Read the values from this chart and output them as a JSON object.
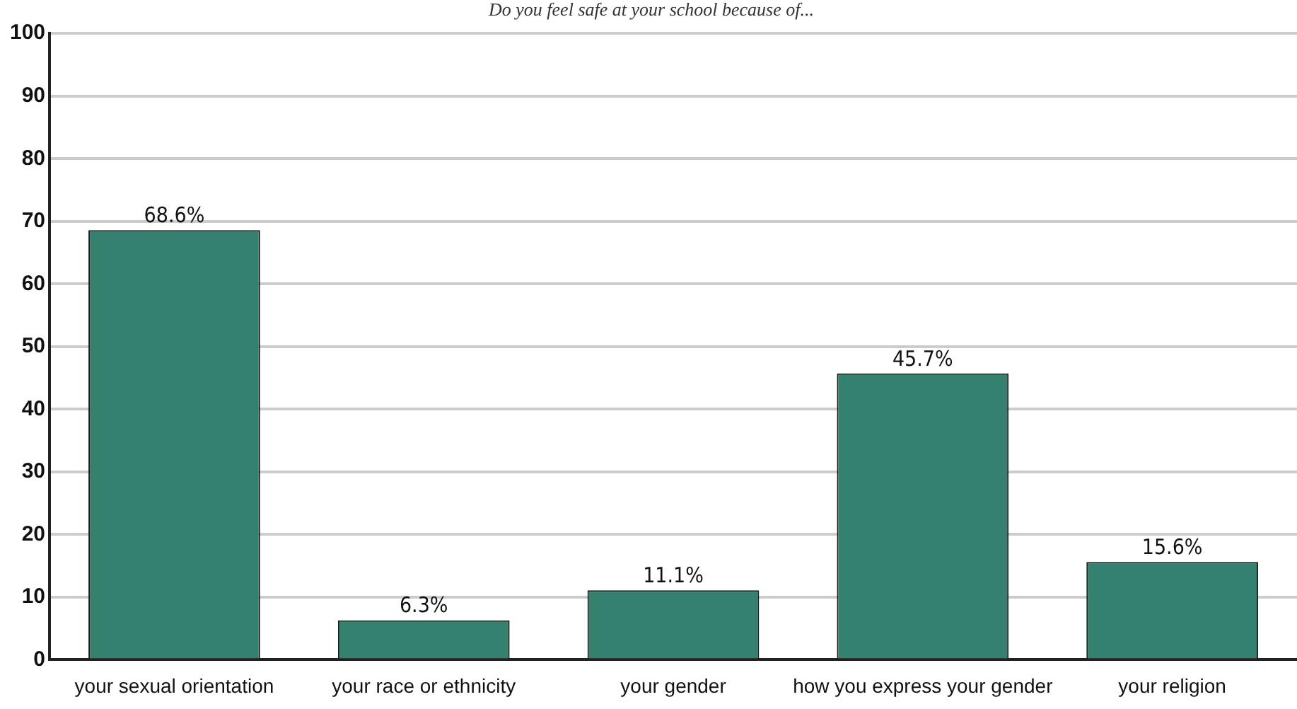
{
  "chart_data": {
    "type": "bar",
    "title": "Do you feel safe at your school because of...",
    "categories": [
      "your sexual orientation",
      "your race or ethnicity",
      "your gender",
      "how you express your gender",
      "your religion"
    ],
    "values": [
      68.6,
      6.3,
      11.1,
      45.7,
      15.6
    ],
    "value_labels": [
      "68.6%",
      "6.3%",
      "11.1%",
      "45.7%",
      "15.6%"
    ],
    "color": "#35816f",
    "ylim": [
      0,
      100
    ],
    "yticks": [
      0,
      10,
      20,
      30,
      40,
      50,
      60,
      70,
      80,
      90,
      100
    ],
    "grid": "y",
    "legend": false
  }
}
